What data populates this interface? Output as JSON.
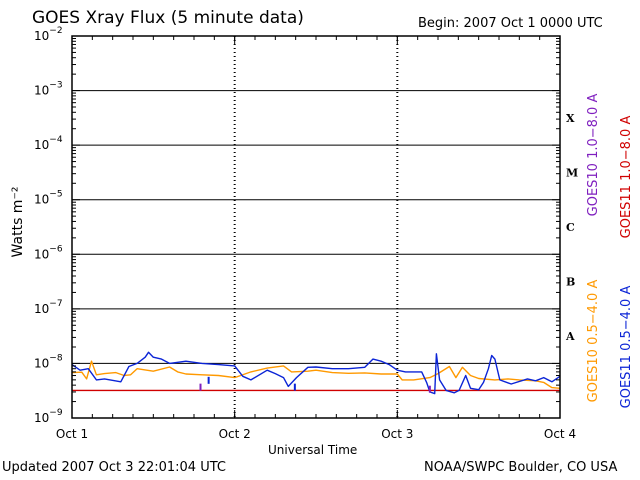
{
  "header": {
    "title": "GOES Xray Flux (5 minute data)",
    "begin": "Begin:  2007 Oct 1 0000 UTC"
  },
  "footer": {
    "updated": "Updated 2007 Oct  3 22:01:04 UTC",
    "credit": "NOAA/SWPC Boulder, CO USA"
  },
  "chart_data": {
    "type": "line",
    "title": "GOES Xray Flux (5 minute data)",
    "xlabel": "Universal Time",
    "ylabel": "Watts m⁻²",
    "yscale": "log",
    "ylim": [
      1e-09,
      0.01
    ],
    "xlim": [
      0,
      3
    ],
    "x_unit": "days since 2007 Oct 1 0000 UTC",
    "grid": "horizontal lines at each decade",
    "x_ticks": [
      {
        "value": 0,
        "label": "Oct 1"
      },
      {
        "value": 1,
        "label": "Oct 2"
      },
      {
        "value": 2,
        "label": "Oct 3"
      },
      {
        "value": 3,
        "label": "Oct 4"
      }
    ],
    "y_ticks": [
      {
        "exp": -2,
        "label": "10",
        "sup": "−2"
      },
      {
        "exp": -3,
        "label": "10",
        "sup": "−3"
      },
      {
        "exp": -4,
        "label": "10",
        "sup": "−4"
      },
      {
        "exp": -5,
        "label": "10",
        "sup": "−5"
      },
      {
        "exp": -6,
        "label": "10",
        "sup": "−6"
      },
      {
        "exp": -7,
        "label": "10",
        "sup": "−7"
      },
      {
        "exp": -8,
        "label": "10",
        "sup": "−8"
      },
      {
        "exp": -9,
        "label": "10",
        "sup": "−9"
      }
    ],
    "flare_classes": [
      {
        "label": "X",
        "exp": -3.5
      },
      {
        "label": "M",
        "exp": -4.5
      },
      {
        "label": "C",
        "exp": -5.5
      },
      {
        "label": "B",
        "exp": -6.5
      },
      {
        "label": "A",
        "exp": -7.5
      }
    ],
    "series": [
      {
        "name": "GOES10 1.0−8.0 A",
        "color": "#7f1fbf",
        "points": []
      },
      {
        "name": "GOES11 1.0−8.0 A",
        "color": "#d00000",
        "points": [
          [
            0.0,
            3.2e-09
          ],
          [
            3.0,
            3.2e-09
          ]
        ]
      },
      {
        "name": "GOES10 0.5−4.0 A",
        "color": "#ff9900",
        "points": [
          [
            0.0,
            6.8e-09
          ],
          [
            0.06,
            6.9e-09
          ],
          [
            0.09,
            5.2e-09
          ],
          [
            0.12,
            1.1e-08
          ],
          [
            0.15,
            6.2e-09
          ],
          [
            0.2,
            6.5e-09
          ],
          [
            0.27,
            6.8e-09
          ],
          [
            0.32,
            6e-09
          ],
          [
            0.36,
            6.2e-09
          ],
          [
            0.4,
            8e-09
          ],
          [
            0.5,
            7.2e-09
          ],
          [
            0.6,
            8.6e-09
          ],
          [
            0.65,
            7e-09
          ],
          [
            0.7,
            6.4e-09
          ],
          [
            0.8,
            6.2e-09
          ],
          [
            0.9,
            6e-09
          ],
          [
            1.0,
            5.5e-09
          ],
          [
            1.1,
            7e-09
          ],
          [
            1.2,
            8.2e-09
          ],
          [
            1.3,
            9e-09
          ],
          [
            1.35,
            7e-09
          ],
          [
            1.45,
            7.2e-09
          ],
          [
            1.5,
            7.5e-09
          ],
          [
            1.6,
            6.8e-09
          ],
          [
            1.7,
            6.6e-09
          ],
          [
            1.8,
            6.7e-09
          ],
          [
            1.9,
            6.4e-09
          ],
          [
            2.0,
            6.4e-09
          ],
          [
            2.03,
            5e-09
          ],
          [
            2.1,
            5e-09
          ],
          [
            2.2,
            5.5e-09
          ],
          [
            2.25,
            6.5e-09
          ],
          [
            2.32,
            8.8e-09
          ],
          [
            2.36,
            5.5e-09
          ],
          [
            2.4,
            8.5e-09
          ],
          [
            2.45,
            6e-09
          ],
          [
            2.5,
            5.3e-09
          ],
          [
            2.6,
            5e-09
          ],
          [
            2.68,
            5.2e-09
          ],
          [
            2.75,
            5e-09
          ],
          [
            2.85,
            4.8e-09
          ],
          [
            2.9,
            4.5e-09
          ],
          [
            2.95,
            3.6e-09
          ],
          [
            3.0,
            3.5e-09
          ]
        ]
      },
      {
        "name": "GOES11 0.5−4.0 A",
        "color": "#0b24d6",
        "points": [
          [
            0.0,
            9.5e-09
          ],
          [
            0.05,
            7.5e-09
          ],
          [
            0.1,
            8e-09
          ],
          [
            0.15,
            5e-09
          ],
          [
            0.2,
            5.2e-09
          ],
          [
            0.3,
            4.6e-09
          ],
          [
            0.35,
            8.8e-09
          ],
          [
            0.4,
            1e-08
          ],
          [
            0.45,
            1.3e-08
          ],
          [
            0.47,
            1.6e-08
          ],
          [
            0.5,
            1.3e-08
          ],
          [
            0.55,
            1.2e-08
          ],
          [
            0.6,
            1e-08
          ],
          [
            0.7,
            1.1e-08
          ],
          [
            0.8,
            1e-08
          ],
          [
            0.9,
            9.5e-09
          ],
          [
            1.0,
            9e-09
          ],
          [
            1.05,
            5.8e-09
          ],
          [
            1.1,
            5e-09
          ],
          [
            1.2,
            7.5e-09
          ],
          [
            1.25,
            6.5e-09
          ],
          [
            1.3,
            5.5e-09
          ],
          [
            1.33,
            3.8e-09
          ],
          [
            1.38,
            5.5e-09
          ],
          [
            1.45,
            8.5e-09
          ],
          [
            1.5,
            8.6e-09
          ],
          [
            1.6,
            8e-09
          ],
          [
            1.7,
            8e-09
          ],
          [
            1.8,
            8.5e-09
          ],
          [
            1.85,
            1.2e-08
          ],
          [
            1.9,
            1.1e-08
          ],
          [
            1.95,
            9.5e-09
          ],
          [
            2.0,
            7.5e-09
          ],
          [
            2.05,
            7e-09
          ],
          [
            2.15,
            7e-09
          ],
          [
            2.18,
            4.5e-09
          ],
          [
            2.2,
            3e-09
          ],
          [
            2.23,
            2.8e-09
          ],
          [
            2.24,
            1.5e-08
          ],
          [
            2.26,
            5e-09
          ],
          [
            2.3,
            3.2e-09
          ],
          [
            2.35,
            2.9e-09
          ],
          [
            2.38,
            3.2e-09
          ],
          [
            2.42,
            6e-09
          ],
          [
            2.45,
            3.5e-09
          ],
          [
            2.5,
            3.3e-09
          ],
          [
            2.53,
            4.5e-09
          ],
          [
            2.56,
            8e-09
          ],
          [
            2.58,
            1.4e-08
          ],
          [
            2.6,
            1.2e-08
          ],
          [
            2.63,
            5e-09
          ],
          [
            2.7,
            4.2e-09
          ],
          [
            2.8,
            5.2e-09
          ],
          [
            2.85,
            4.8e-09
          ],
          [
            2.9,
            5.5e-09
          ],
          [
            2.95,
            4.6e-09
          ],
          [
            3.0,
            5.8e-09
          ]
        ]
      }
    ],
    "markers": [
      {
        "x": 0.84,
        "y": 4.8e-09,
        "color": "#0b24d6"
      },
      {
        "x": 1.37,
        "y": 3.6e-09,
        "color": "#0b24d6"
      },
      {
        "x": 0.79,
        "y": 3.6e-09,
        "color": "#7f1fbf"
      },
      {
        "x": 2.2,
        "y": 3.3e-09,
        "color": "#7f1fbf"
      }
    ]
  }
}
